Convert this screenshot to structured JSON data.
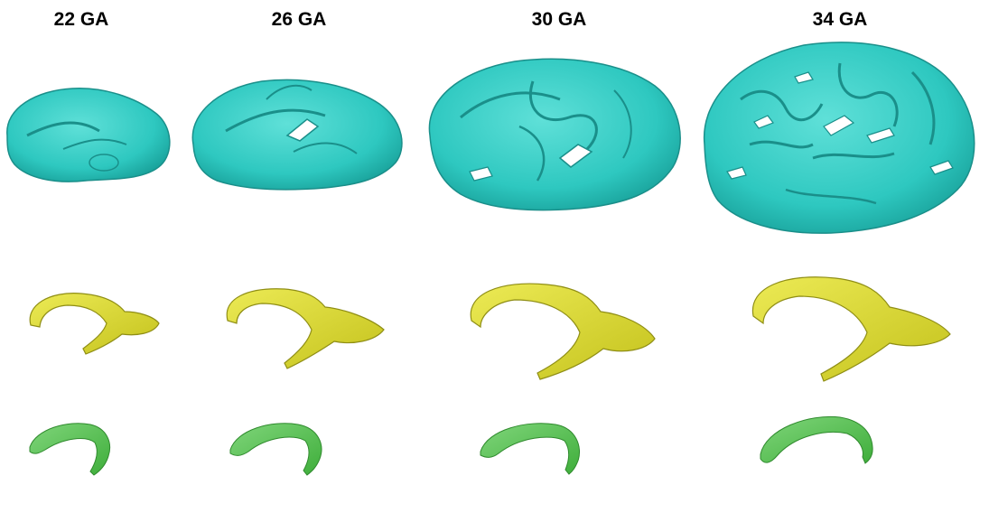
{
  "columns": [
    {
      "label": "22 GA"
    },
    {
      "label": "26 GA"
    },
    {
      "label": "30 GA"
    },
    {
      "label": "34 GA"
    }
  ],
  "colors": {
    "cortex": "#2ec8c0",
    "cortex_line": "#1a8f8a",
    "ventricle": "#d8d62a",
    "ventricle_line": "#8f8e15",
    "lower": "#5cc457",
    "lower_line": "#2f8a2d",
    "background": "#ffffff"
  }
}
